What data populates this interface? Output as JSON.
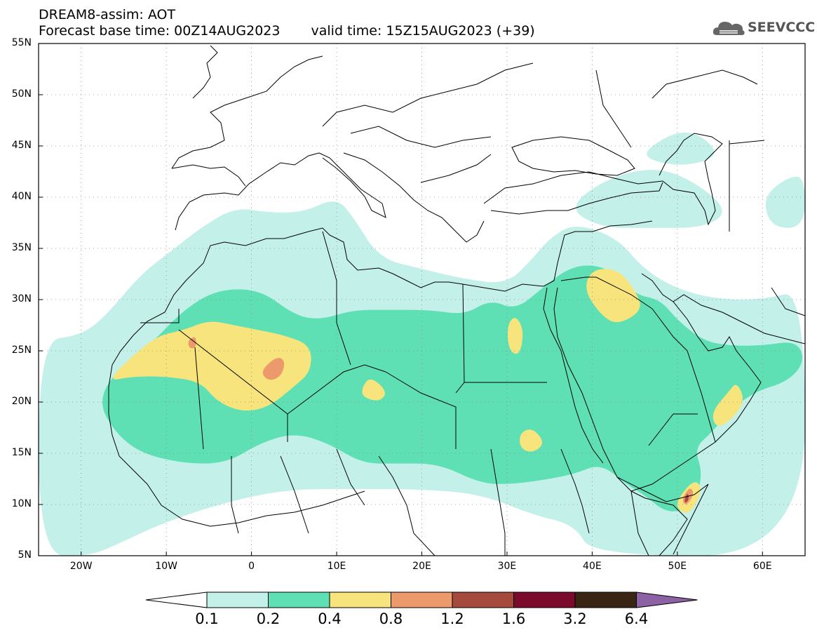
{
  "header": {
    "title": "DREAM8-assim: AOT",
    "base_time": "Forecast base time: 00Z14AUG2023",
    "valid_time": "valid time: 15Z15AUG2023 (+39)"
  },
  "logo": {
    "text": "SEEVCCC",
    "icon": "cloud-icon"
  },
  "chart_data": {
    "type": "map",
    "x_range": [
      -25,
      65
    ],
    "y_range": [
      5,
      55
    ],
    "x_ticks": [
      {
        "value": -20,
        "label": "20W"
      },
      {
        "value": -10,
        "label": "10W"
      },
      {
        "value": 0,
        "label": "0"
      },
      {
        "value": 10,
        "label": "10E"
      },
      {
        "value": 20,
        "label": "20E"
      },
      {
        "value": 30,
        "label": "30E"
      },
      {
        "value": 40,
        "label": "40E"
      },
      {
        "value": 50,
        "label": "50E"
      },
      {
        "value": 60,
        "label": "60E"
      }
    ],
    "y_ticks": [
      {
        "value": 5,
        "label": "5N"
      },
      {
        "value": 10,
        "label": "10N"
      },
      {
        "value": 15,
        "label": "15N"
      },
      {
        "value": 20,
        "label": "20N"
      },
      {
        "value": 25,
        "label": "25N"
      },
      {
        "value": 30,
        "label": "30N"
      },
      {
        "value": 35,
        "label": "35N"
      },
      {
        "value": 40,
        "label": "40N"
      },
      {
        "value": 45,
        "label": "45N"
      },
      {
        "value": 50,
        "label": "50N"
      },
      {
        "value": 55,
        "label": "55N"
      }
    ],
    "grid": "dotted",
    "colorbar": {
      "colors": [
        "#c4f0ea",
        "#5ee0b4",
        "#f8e47c",
        "#ec9a6c",
        "#a54a3c",
        "#7b0a2c",
        "#3a2414",
        "#8c62a4"
      ],
      "labels": [
        "0.1",
        "0.2",
        "0.4",
        "0.8",
        "1.2",
        "1.6",
        "3.2",
        "6.4"
      ]
    },
    "fields": [
      {
        "level": 0,
        "color": "#c4f0ea",
        "lonlat": [
          [
            -25,
            26
          ],
          [
            -20,
            26.5
          ],
          [
            -17,
            28.5
          ],
          [
            -13,
            32.5
          ],
          [
            -9,
            35
          ],
          [
            -6,
            37
          ],
          [
            -2,
            39
          ],
          [
            2,
            38.5
          ],
          [
            6,
            38.5
          ],
          [
            10,
            40
          ],
          [
            12,
            38
          ],
          [
            15,
            34
          ],
          [
            20,
            33
          ],
          [
            25,
            32
          ],
          [
            30,
            31.5
          ],
          [
            33,
            34
          ],
          [
            35,
            36
          ],
          [
            38,
            37.5
          ],
          [
            43,
            36
          ],
          [
            46,
            33
          ],
          [
            50,
            31
          ],
          [
            55,
            30
          ],
          [
            60,
            30
          ],
          [
            65,
            31
          ],
          [
            65,
            5
          ],
          [
            40,
            5
          ],
          [
            38,
            8
          ],
          [
            33,
            9
          ],
          [
            27,
            11
          ],
          [
            20,
            11.5
          ],
          [
            12,
            11.5
          ],
          [
            4,
            11.5
          ],
          [
            -4,
            10
          ],
          [
            -11,
            8
          ],
          [
            -16,
            6
          ],
          [
            -19,
            5
          ],
          [
            -25,
            5
          ]
        ]
      },
      {
        "level": 0,
        "color": "#c4f0ea",
        "lonlat": [
          [
            37,
            39
          ],
          [
            42,
            42
          ],
          [
            48,
            43
          ],
          [
            53,
            41
          ],
          [
            56,
            38.5
          ],
          [
            53,
            37
          ],
          [
            47,
            37
          ],
          [
            41,
            37
          ]
        ]
      },
      {
        "level": 0,
        "color": "#c4f0ea",
        "lonlat": [
          [
            46,
            44.5
          ],
          [
            50,
            46.5
          ],
          [
            53,
            46
          ],
          [
            55,
            44
          ],
          [
            51,
            43
          ],
          [
            47,
            43.5
          ]
        ]
      },
      {
        "level": 0,
        "color": "#c4f0ea",
        "lonlat": [
          [
            60,
            40
          ],
          [
            63,
            42
          ],
          [
            65,
            42
          ],
          [
            65,
            37
          ],
          [
            61,
            37
          ]
        ]
      },
      {
        "level": 1,
        "color": "#5ee0b4",
        "lonlat": [
          [
            -16,
            23
          ],
          [
            -12,
            25.5
          ],
          [
            -8,
            29
          ],
          [
            -4,
            31
          ],
          [
            1,
            31
          ],
          [
            5,
            28.5
          ],
          [
            8,
            28
          ],
          [
            12,
            29
          ],
          [
            16,
            29
          ],
          [
            21,
            29
          ],
          [
            25,
            28.5
          ],
          [
            28,
            30
          ],
          [
            31,
            29
          ],
          [
            34,
            31
          ],
          [
            37,
            33
          ],
          [
            40,
            33.5
          ],
          [
            43,
            32.5
          ],
          [
            45,
            30.5
          ],
          [
            48,
            30
          ],
          [
            50,
            28
          ],
          [
            53,
            26
          ],
          [
            56,
            25.5
          ],
          [
            60,
            25.5
          ],
          [
            64,
            26
          ],
          [
            65,
            24
          ],
          [
            63,
            22
          ],
          [
            59,
            21
          ],
          [
            56,
            19
          ],
          [
            54,
            17
          ],
          [
            52,
            15.5
          ],
          [
            53,
            13
          ],
          [
            52,
            10
          ],
          [
            49,
            9
          ],
          [
            46,
            11
          ],
          [
            44,
            12
          ],
          [
            41,
            14
          ],
          [
            38,
            13
          ],
          [
            35,
            12.5
          ],
          [
            31,
            12
          ],
          [
            27,
            12
          ],
          [
            22,
            14
          ],
          [
            17,
            14
          ],
          [
            13,
            14
          ],
          [
            9,
            16
          ],
          [
            5,
            17
          ],
          [
            1,
            16
          ],
          [
            -3,
            14
          ],
          [
            -8,
            14
          ],
          [
            -13,
            15
          ],
          [
            -16,
            17
          ],
          [
            -18,
            20
          ]
        ]
      },
      {
        "level": 2,
        "color": "#f8e47c",
        "lonlat": [
          [
            -17,
            22
          ],
          [
            -14,
            24.5
          ],
          [
            -11,
            26.5
          ],
          [
            -8,
            27
          ],
          [
            -5,
            28
          ],
          [
            -2,
            27.5
          ],
          [
            1,
            27
          ],
          [
            4,
            26.5
          ],
          [
            7,
            25.5
          ],
          [
            7,
            23
          ],
          [
            5,
            21.5
          ],
          [
            2,
            19.5
          ],
          [
            -1,
            19
          ],
          [
            -4,
            20
          ],
          [
            -6,
            22
          ],
          [
            -10,
            22.5
          ],
          [
            -14,
            22.5
          ]
        ]
      },
      {
        "level": 2,
        "color": "#f8e47c",
        "lonlat": [
          [
            39,
            31
          ],
          [
            40,
            33
          ],
          [
            43,
            33
          ],
          [
            45,
            31
          ],
          [
            46,
            29
          ],
          [
            43,
            27.5
          ],
          [
            41,
            28.5
          ]
        ]
      },
      {
        "level": 2,
        "color": "#f8e47c",
        "lonlat": [
          [
            13,
            21.5
          ],
          [
            14,
            22.5
          ],
          [
            16,
            21
          ],
          [
            15,
            20
          ],
          [
            13,
            20.5
          ]
        ]
      },
      {
        "level": 2,
        "color": "#f8e47c",
        "lonlat": [
          [
            30,
            27.5
          ],
          [
            31,
            28.5
          ],
          [
            32,
            27
          ],
          [
            31.5,
            24.5
          ],
          [
            30.2,
            25
          ]
        ]
      },
      {
        "level": 2,
        "color": "#f8e47c",
        "lonlat": [
          [
            31.5,
            17
          ],
          [
            33,
            17.5
          ],
          [
            34.5,
            16
          ],
          [
            33,
            15
          ],
          [
            31.5,
            15.5
          ]
        ]
      },
      {
        "level": 2,
        "color": "#f8e47c",
        "lonlat": [
          [
            54,
            19
          ],
          [
            56,
            21
          ],
          [
            57,
            22
          ],
          [
            58,
            20
          ],
          [
            56,
            18
          ],
          [
            54.5,
            17.5
          ]
        ]
      },
      {
        "level": 2,
        "color": "#f8e47c",
        "lonlat": [
          [
            50,
            10.5
          ],
          [
            52,
            12.5
          ],
          [
            53,
            11.5
          ],
          [
            51.5,
            9
          ],
          [
            50,
            9.5
          ]
        ]
      },
      {
        "level": 3,
        "color": "#ec9a6c",
        "lonlat": [
          [
            1,
            23
          ],
          [
            3,
            24.5
          ],
          [
            4,
            24
          ],
          [
            3.5,
            22.5
          ],
          [
            2,
            22
          ]
        ]
      },
      {
        "level": 3,
        "color": "#ec9a6c",
        "lonlat": [
          [
            -7.5,
            26
          ],
          [
            -6.5,
            26.5
          ],
          [
            -6.5,
            25.3
          ],
          [
            -7.3,
            25.2
          ]
        ]
      },
      {
        "level": 3,
        "color": "#ec9a6c",
        "lonlat": [
          [
            50.5,
            10.5
          ],
          [
            51.5,
            11.8
          ],
          [
            52,
            11
          ],
          [
            51,
            9.8
          ]
        ]
      },
      {
        "level": 4,
        "color": "#a54a3c",
        "lonlat": [
          [
            50.8,
            10.4
          ],
          [
            51.2,
            11.2
          ],
          [
            51.4,
            10.6
          ],
          [
            51,
            10.1
          ]
        ]
      }
    ]
  }
}
